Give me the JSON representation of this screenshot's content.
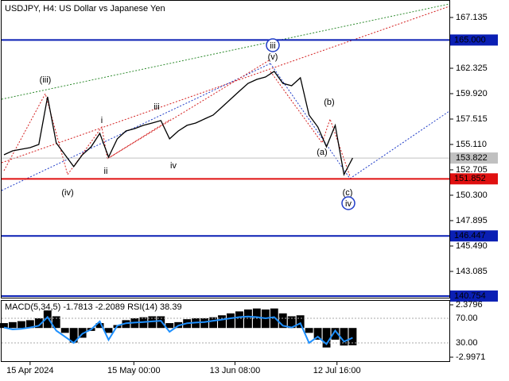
{
  "chart_data": [
    {
      "type": "line",
      "title": "USDJPY, H4:  US Dollar vs Japanese Yen",
      "color": "#000000",
      "values": [
        154.13,
        154.51,
        154.66,
        154.81,
        155.11,
        159.62,
        155.26,
        154.13,
        153.01,
        154.13,
        154.89,
        156.16,
        153.91,
        155.64,
        156.39,
        156.61,
        156.92,
        157.14,
        157.37,
        155.64,
        156.39,
        156.92,
        157.14,
        157.52,
        157.89,
        158.64,
        159.4,
        160.15,
        160.9,
        161.27,
        161.5,
        162.03,
        160.9,
        160.67,
        161.42,
        157.89,
        156.77,
        154.89,
        156.92,
        152.26,
        153.82
      ],
      "xlim": [
        -0.27,
        51.09
      ],
      "xticks": [
        {
          "value": 3,
          "label": "15 Apr 2024"
        },
        {
          "value": 14.9,
          "label": "15 May 00:00"
        },
        {
          "value": 26.5,
          "label": "13 Jun 08:00"
        },
        {
          "value": 38.2,
          "label": "12 Jul 16:00"
        }
      ],
      "ylim": [
        140.6,
        168.79
      ],
      "yticks": [
        167.135,
        {
          "value": 164.73,
          "label": "164.730"
        },
        162.325,
        {
          "value": 159.92,
          "label": "159.920"
        },
        157.515,
        {
          "value": 155.11,
          "label": "155.110"
        },
        152.705,
        {
          "value": 150.3,
          "label": "150.300"
        },
        147.895,
        {
          "value": 145.49,
          "label": "145.490"
        },
        143.085
      ],
      "levels": [
        {
          "value": 165,
          "label": "165.000",
          "color": "#0a1fb4"
        },
        {
          "value": 151.852,
          "label": "151.852",
          "color": "#e01010"
        },
        {
          "value": 146.447,
          "label": "146.447",
          "color": "#0a1fb4"
        },
        {
          "value": 140.754,
          "label": "140.754",
          "color": "#0a1fb4"
        }
      ],
      "current_price": {
        "value": 153.822,
        "label": "153.822",
        "color": "#c0c0c0"
      },
      "wave_labels": [
        "(iii)",
        "(iv)",
        "i",
        "ii",
        "iii",
        "iv",
        "(v)",
        "iii",
        "(a)",
        "(b)",
        "(c)",
        "iv"
      ]
    },
    {
      "type": "bar",
      "label": "MACD(5,34,5) -1.7813 -2.2089 RSI(14) 38.39",
      "color": "#000000",
      "values": [
        0.5,
        0.6,
        0.7,
        0.8,
        1.0,
        1.8,
        1.2,
        -0.5,
        -1.5,
        -1.0,
        -0.3,
        0.5,
        -0.5,
        0.3,
        0.8,
        1.0,
        1.1,
        1.2,
        1.2,
        0.5,
        0.6,
        0.9,
        1.0,
        1.0,
        1.1,
        1.3,
        1.5,
        1.7,
        1.9,
        2.0,
        1.9,
        2.0,
        1.5,
        1.2,
        1.3,
        -0.5,
        -1.2,
        -2.0,
        -1.2,
        -1.8,
        -1.78
      ],
      "ylim": [
        -3.405,
        2.868
      ],
      "yticks": [
        2.3796,
        -2.9971
      ],
      "rsi_color": "#1e90ff",
      "rsi_values": [
        55,
        52,
        53,
        55,
        58,
        72,
        50,
        40,
        30,
        45,
        52,
        65,
        35,
        58,
        62,
        63,
        64,
        65,
        66,
        48,
        58,
        62,
        63,
        64,
        66,
        68,
        70,
        72,
        73,
        72,
        70,
        72,
        58,
        55,
        62,
        30,
        40,
        28,
        50,
        32,
        38.39
      ],
      "y2lim": [
        0.3,
        99.7
      ],
      "y2ticks": [
        {
          "value": 70,
          "label": "70.00"
        },
        {
          "value": 30,
          "label": "30.00"
        }
      ]
    }
  ]
}
